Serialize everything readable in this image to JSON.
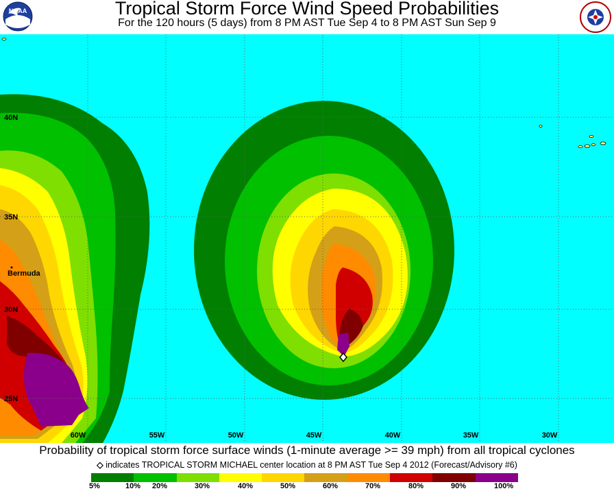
{
  "header": {
    "title": "Tropical Storm Force Wind Speed Probabilities",
    "subtitle": "For the 120 hours (5 days) from 8 PM AST Tue Sep 4 to 8 PM AST Sun Sep 9",
    "left_logo": "NOAA",
    "right_logo": "NATIONAL WEATHER SERVICE"
  },
  "map": {
    "ocean_color": "#00ffff",
    "lat_labels": [
      "40N",
      "35N",
      "30N",
      "25N"
    ],
    "lon_labels": [
      "60W",
      "55W",
      "50W",
      "45W",
      "40W",
      "35W",
      "30W"
    ],
    "place_label": "Bermuda",
    "storm_marker": "diamond-icon"
  },
  "footer": {
    "line1": "Probability of tropical storm force surface winds (1-minute average >= 39 mph) from all tropical cyclones",
    "line2": "indicates TROPICAL STORM MICHAEL center location at 8 PM AST Tue Sep 4 2012 (Forecast/Advisory #6)",
    "marker_glyph": "◇"
  },
  "legend": {
    "colors": [
      "#007f00",
      "#00c000",
      "#7fdf00",
      "#ffff00",
      "#ffd700",
      "#d4a017",
      "#ff8c00",
      "#d00000",
      "#800000",
      "#8b008b"
    ],
    "labels": [
      "5%",
      "10%",
      "20%",
      "30%",
      "40%",
      "50%",
      "60%",
      "70%",
      "80%",
      "90%",
      "100%"
    ]
  }
}
